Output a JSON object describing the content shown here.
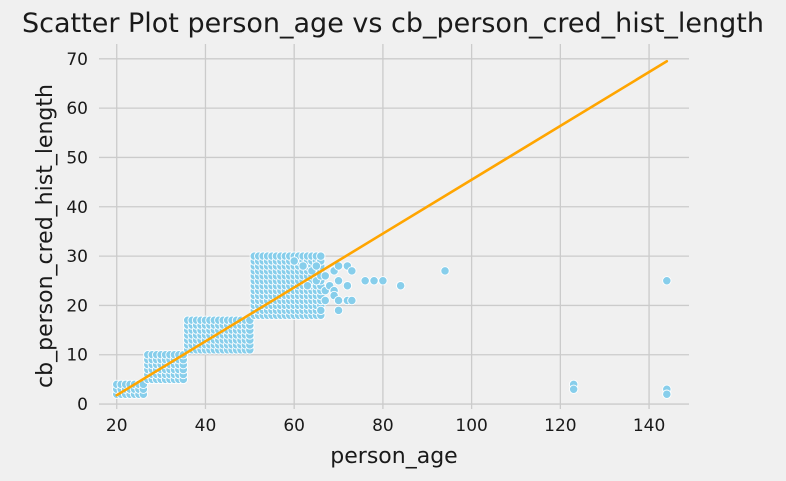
{
  "chart_data": {
    "type": "scatter",
    "title": "Scatter Plot person_age vs cb_person_cred_hist_length",
    "xlabel": "person_age",
    "ylabel": "cb_person_cred_hist_length",
    "xlim": [
      16,
      149
    ],
    "ylim": [
      -1,
      73
    ],
    "xticks": [
      20,
      40,
      60,
      80,
      100,
      120,
      140
    ],
    "yticks": [
      0,
      10,
      20,
      30,
      40,
      50,
      60,
      70
    ],
    "grid": true,
    "point_color": "#87ceeb",
    "point_edge_color": "#ffffff",
    "line_color": "#ffa500",
    "background_color": "#f0f0f0",
    "clusters": [
      {
        "x_range": [
          20,
          26
        ],
        "y_range": [
          2,
          4
        ]
      },
      {
        "x_range": [
          27,
          35
        ],
        "y_range": [
          5,
          10
        ]
      },
      {
        "x_range": [
          36,
          50
        ],
        "y_range": [
          11,
          17
        ]
      },
      {
        "x_range": [
          51,
          66
        ],
        "y_range": [
          18,
          30
        ]
      }
    ],
    "points": [
      [
        60,
        29
      ],
      [
        62,
        28
      ],
      [
        63,
        24
      ],
      [
        64,
        27
      ],
      [
        65,
        25
      ],
      [
        65,
        28
      ],
      [
        66,
        26
      ],
      [
        66,
        19
      ],
      [
        67,
        26
      ],
      [
        67,
        21
      ],
      [
        67,
        23
      ],
      [
        68,
        24
      ],
      [
        69,
        27
      ],
      [
        69,
        23
      ],
      [
        69,
        22
      ],
      [
        70,
        28
      ],
      [
        70,
        25
      ],
      [
        70,
        21
      ],
      [
        70,
        19
      ],
      [
        72,
        28
      ],
      [
        72,
        24
      ],
      [
        72,
        21
      ],
      [
        73,
        27
      ],
      [
        73,
        21
      ],
      [
        76,
        25
      ],
      [
        78,
        25
      ],
      [
        80,
        25
      ],
      [
        84,
        24
      ],
      [
        94,
        27
      ],
      [
        123,
        4
      ],
      [
        123,
        3
      ],
      [
        144,
        25
      ],
      [
        144,
        3
      ],
      [
        144,
        2
      ]
    ],
    "trend_line": {
      "x": [
        20,
        144
      ],
      "y": [
        1.8,
        69.5
      ]
    }
  }
}
